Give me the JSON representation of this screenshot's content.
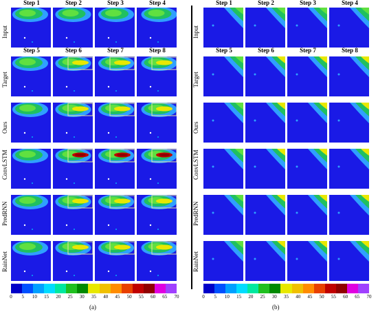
{
  "steps_top": [
    "Step 1",
    "Step 2",
    "Step 3",
    "Step 4"
  ],
  "steps_target": [
    "Step 5",
    "Step 6",
    "Step 7",
    "Step 8"
  ],
  "row_labels": [
    "Input",
    "Target",
    "Ours",
    "ConvLSTM",
    "PredRNN",
    "RainNet"
  ],
  "colorbar": {
    "ticks": [
      "0",
      "5",
      "10",
      "15",
      "20",
      "25",
      "30",
      "35",
      "40",
      "45",
      "50",
      "55",
      "60",
      "65",
      "70"
    ],
    "colors": [
      "#0000c8",
      "#0050ff",
      "#00a0ff",
      "#00dcff",
      "#00e8a0",
      "#20c020",
      "#008a00",
      "#e8e800",
      "#f0c000",
      "#ff8c00",
      "#e84000",
      "#c00000",
      "#900000",
      "#e000e0",
      "#a040ff"
    ]
  },
  "captions": {
    "a": "(a)",
    "b": "(b)"
  }
}
